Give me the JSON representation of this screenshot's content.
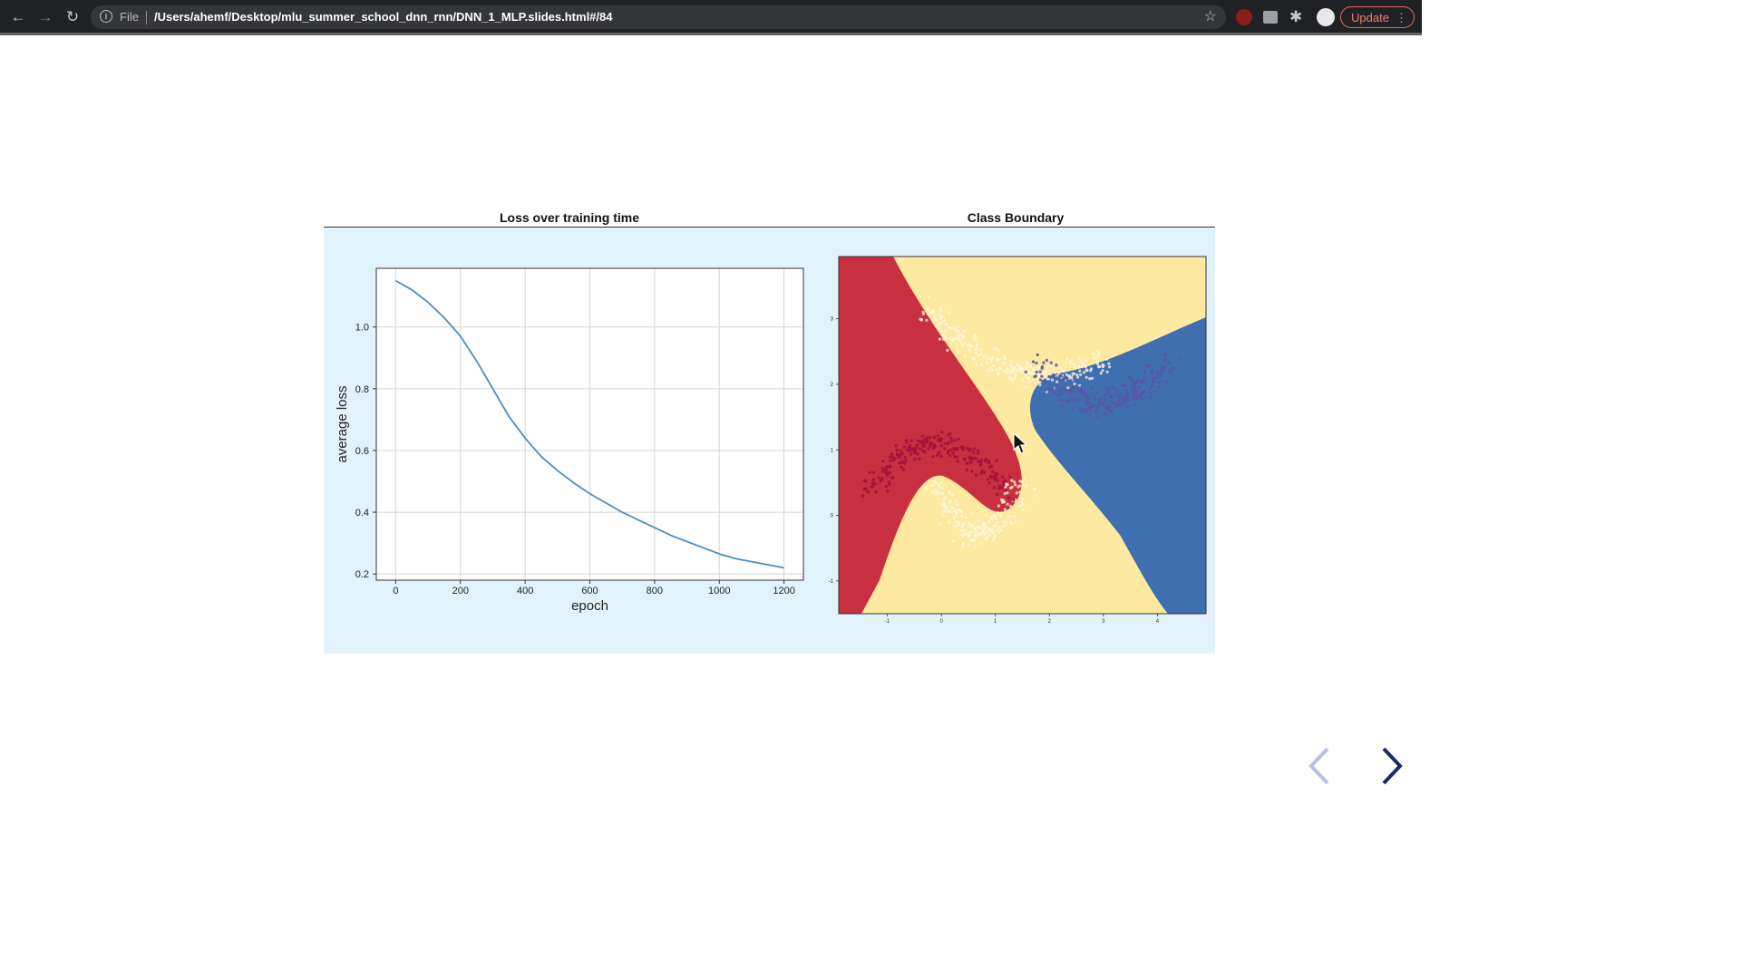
{
  "browser": {
    "url_prefix": "File",
    "url": "/Users/ahemf/Desktop/mlu_summer_school_dnn_rnn/DNN_1_MLP.slides.html#/84",
    "update_label": "Update"
  },
  "loss_chart": {
    "title": "Loss over training time",
    "xlabel": "epoch",
    "ylabel": "average loss",
    "x_ticks": [
      "0",
      "200",
      "400",
      "600",
      "800",
      "1000",
      "1200"
    ],
    "y_ticks": [
      "0.2",
      "0.4",
      "0.6",
      "0.8",
      "1.0"
    ]
  },
  "boundary_chart": {
    "title": "Class Boundary",
    "x_ticks": [
      "-1",
      "0",
      "1",
      "2",
      "3",
      "4"
    ],
    "y_ticks": [
      "-1",
      "0",
      "1",
      "2",
      "3"
    ]
  },
  "chart_data": [
    {
      "type": "line",
      "title": "Loss over training time",
      "xlabel": "epoch",
      "ylabel": "average loss",
      "xlim": [
        -60,
        1260
      ],
      "ylim": [
        0.18,
        1.19
      ],
      "grid": true,
      "series": [
        {
          "color": "#4c8ec0",
          "x": [
            0,
            50,
            100,
            150,
            200,
            250,
            300,
            350,
            400,
            450,
            500,
            550,
            600,
            650,
            700,
            750,
            800,
            850,
            900,
            950,
            1000,
            1050,
            1100,
            1150,
            1200
          ],
          "y": [
            1.15,
            1.12,
            1.08,
            1.03,
            0.97,
            0.89,
            0.8,
            0.71,
            0.64,
            0.58,
            0.535,
            0.495,
            0.46,
            0.43,
            0.4,
            0.375,
            0.35,
            0.325,
            0.305,
            0.285,
            0.265,
            0.25,
            0.24,
            0.23,
            0.22
          ]
        }
      ]
    },
    {
      "type": "scatter",
      "title": "Class Boundary",
      "xlim": [
        -1.9,
        4.9
      ],
      "ylim": [
        -1.5,
        3.95
      ],
      "region_colors": {
        "red": "#c8303f",
        "yellow": "#fde9a0",
        "blue": "#3f6eb1"
      },
      "point_colors": {
        "red_class": "#a5123b",
        "blue_class": "#5a55a8",
        "cream_class": "#fff7dc"
      }
    }
  ],
  "nav": {
    "prev": "‹",
    "next": "›"
  }
}
